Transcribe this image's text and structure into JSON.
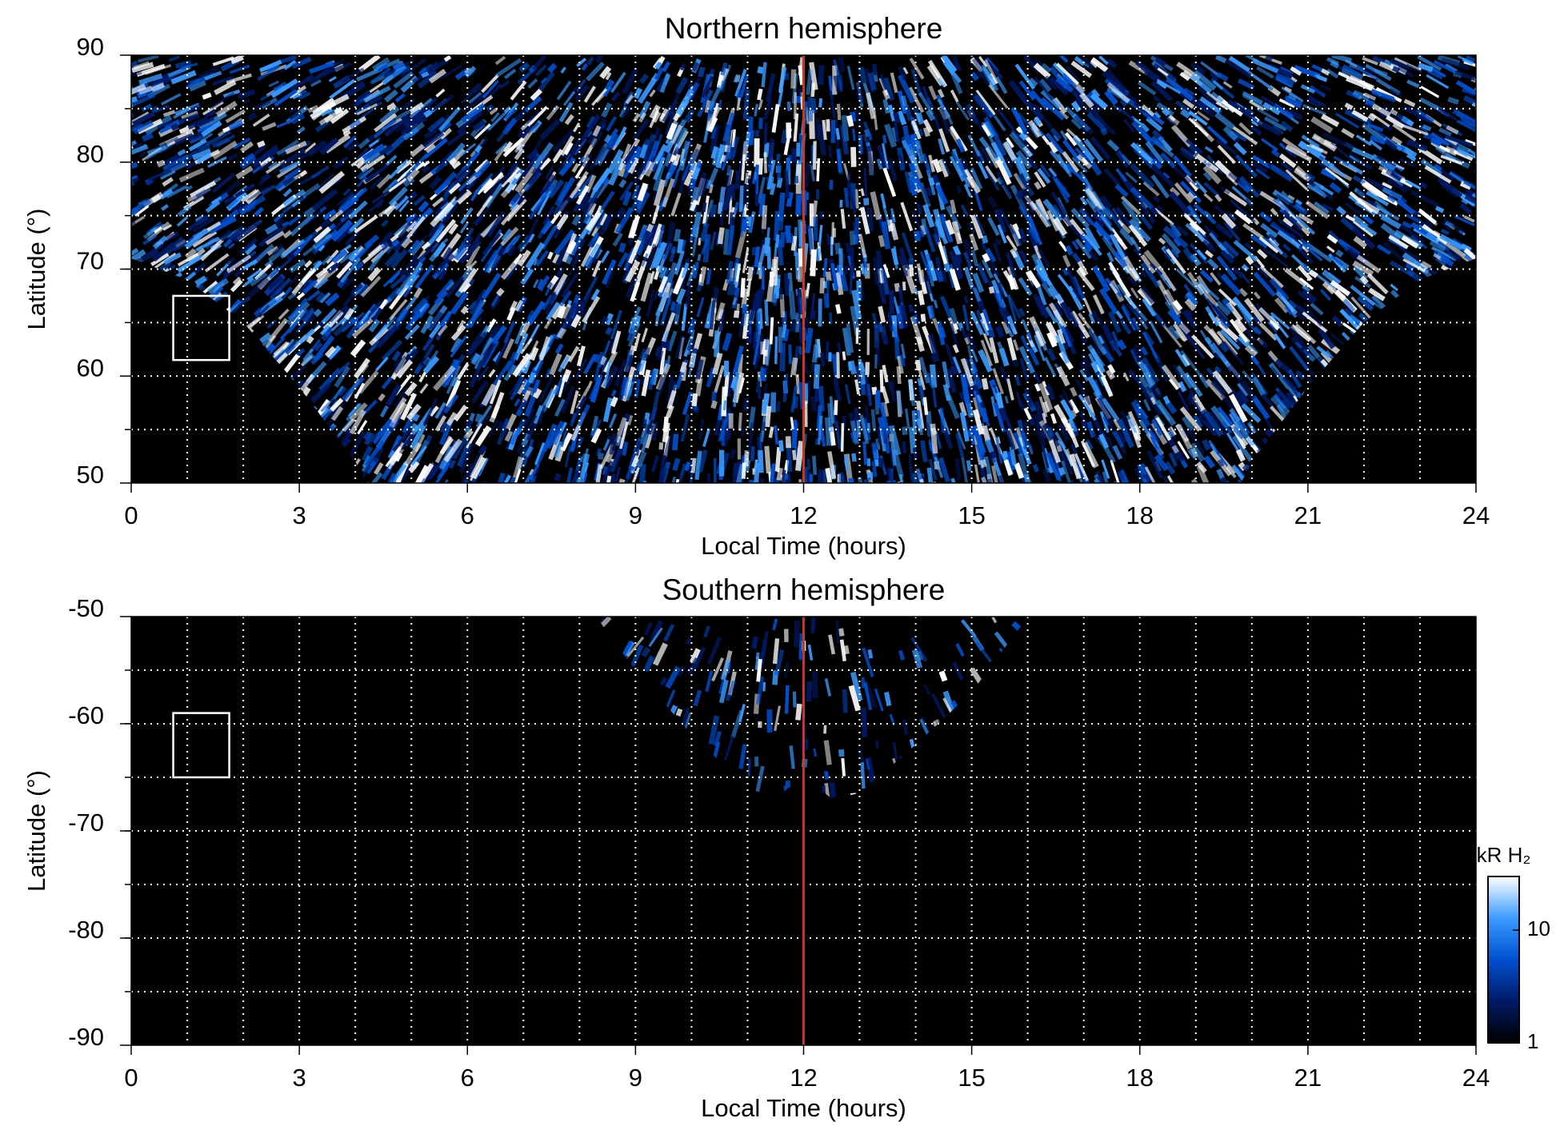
{
  "chart_data": [
    {
      "type": "heatmap",
      "title": "Northern hemisphere",
      "xlabel": "Local Time (hours)",
      "ylabel": "Latitude (°)",
      "xlim": [
        0,
        24
      ],
      "xticks": [
        0,
        3,
        6,
        9,
        12,
        15,
        18,
        21,
        24
      ],
      "xgrid": [
        1,
        2,
        3,
        4,
        5,
        6,
        7,
        8,
        9,
        10,
        11,
        12,
        13,
        14,
        15,
        16,
        17,
        18,
        19,
        20,
        21,
        22,
        23
      ],
      "ylim": [
        50,
        90
      ],
      "yticks": [
        50,
        60,
        70,
        80,
        90
      ],
      "ygrid": [
        55,
        60,
        65,
        70,
        75,
        80,
        85
      ],
      "reference_x": 12,
      "reference_color": "#c8381e",
      "box": {
        "x": [
          0.75,
          1.75
        ],
        "y": [
          61.5,
          67.5
        ]
      }
    },
    {
      "type": "heatmap",
      "title": "Southern hemisphere",
      "xlabel": "Local Time (hours)",
      "ylabel": "Latitude (°)",
      "xlim": [
        0,
        24
      ],
      "xticks": [
        0,
        3,
        6,
        9,
        12,
        15,
        18,
        21,
        24
      ],
      "xgrid": [
        1,
        2,
        3,
        4,
        5,
        6,
        7,
        8,
        9,
        10,
        11,
        12,
        13,
        14,
        15,
        16,
        17,
        18,
        19,
        20,
        21,
        22,
        23
      ],
      "ylim": [
        -90,
        -50
      ],
      "yticks": [
        -90,
        -80,
        -70,
        -60,
        -50
      ],
      "ygrid": [
        -85,
        -80,
        -75,
        -70,
        -65,
        -60,
        -55
      ],
      "reference_x": 12,
      "reference_color": "#c8381e",
      "box": {
        "x": [
          0.75,
          1.75
        ],
        "y": [
          -65,
          -59
        ]
      },
      "colorbar": {
        "label": "kR H₂",
        "lim": [
          1,
          30
        ],
        "ticks": [
          1,
          10
        ],
        "log": true,
        "colors": [
          "#000000",
          "#001a66",
          "#0050d0",
          "#3a9cff",
          "#ffffff"
        ]
      }
    }
  ]
}
